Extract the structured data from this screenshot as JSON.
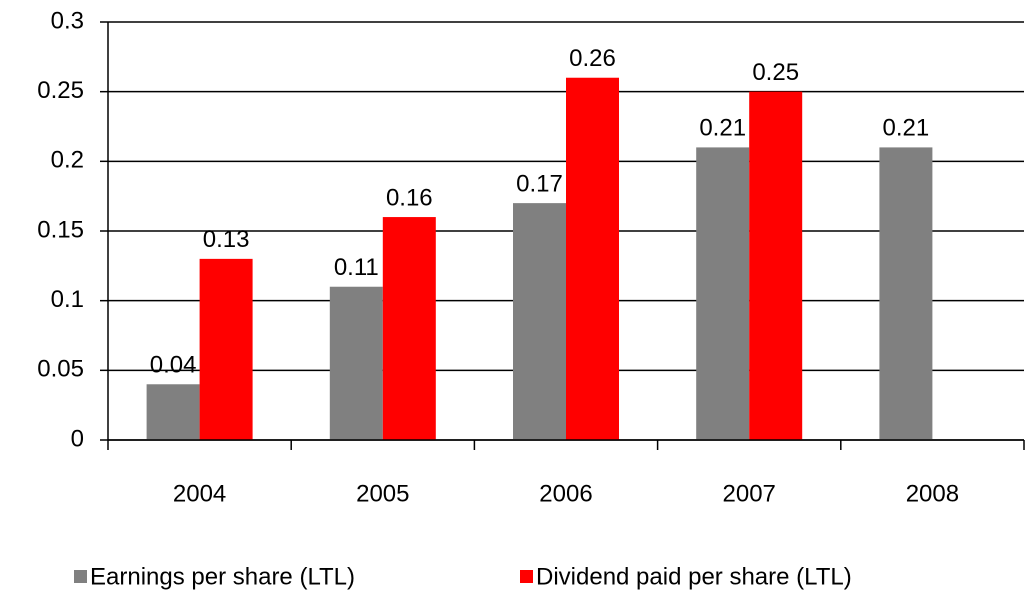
{
  "chart_data": {
    "type": "bar",
    "categories": [
      "2004",
      "2005",
      "2006",
      "2007",
      "2008"
    ],
    "series": [
      {
        "name": "Earnings per share (LTL)",
        "color": "#808080",
        "values": [
          0.04,
          0.11,
          0.17,
          0.21,
          0.21
        ]
      },
      {
        "name": "Dividend paid per share (LTL)",
        "color": "#ff0000",
        "values": [
          0.13,
          0.16,
          0.26,
          0.25,
          null
        ]
      }
    ],
    "ylim": [
      0,
      0.3
    ],
    "yticks": [
      0,
      0.05,
      0.1,
      0.15,
      0.2,
      0.25,
      0.3
    ],
    "grid": true,
    "legend": "bottom"
  }
}
